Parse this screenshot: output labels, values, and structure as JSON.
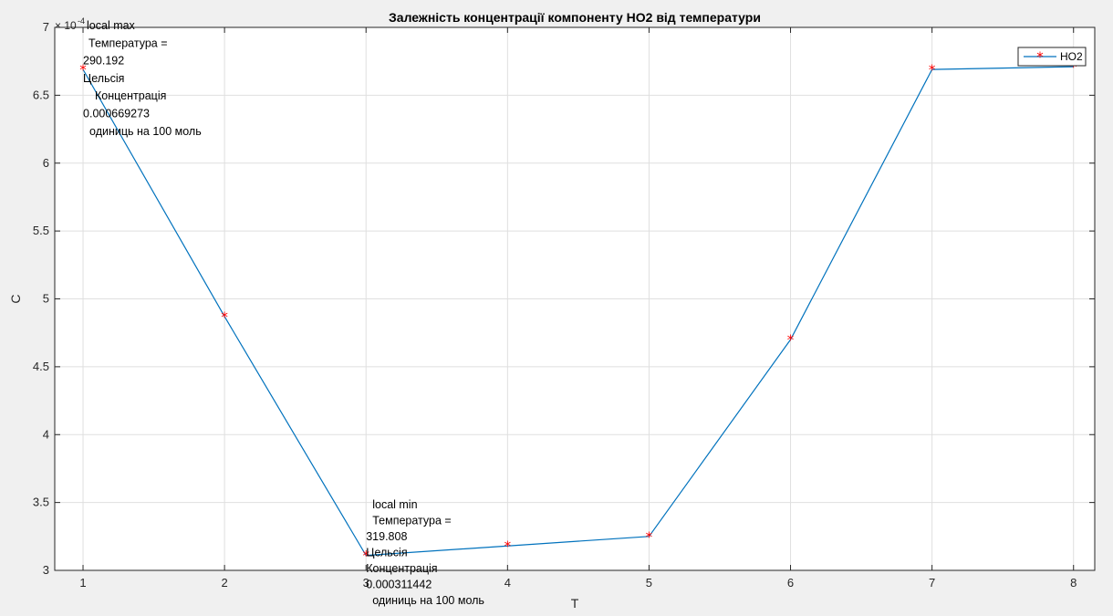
{
  "chart_data": {
    "type": "line",
    "title": "Залежність концентрації компоненту НО2 від температури",
    "xlabel": "T",
    "ylabel": "C",
    "y_exponent_base": "× 10",
    "y_exponent_power": "-4",
    "x": [
      1,
      2,
      3,
      4,
      5,
      6,
      7,
      8
    ],
    "xlim": [
      0.8,
      8.15
    ],
    "ylim": [
      3,
      7
    ],
    "x_ticks": [
      1,
      2,
      3,
      4,
      5,
      6,
      7,
      8
    ],
    "y_ticks": [
      3,
      3.5,
      4,
      4.5,
      5,
      5.5,
      6,
      6.5,
      7
    ],
    "grid": true,
    "legend_position": "top-right",
    "series": [
      {
        "name": "HO2",
        "values": [
          6.69,
          4.87,
          3.11,
          3.18,
          3.25,
          4.7,
          6.69,
          6.71
        ],
        "line_color": "#0072bd",
        "marker_color": "#ff0000",
        "marker": "*"
      }
    ],
    "annotations": {
      "max": {
        "x": 1,
        "lines": [
          "local max",
          "Температура =",
          "290.192",
          "Цельсія",
          "Концентрація",
          "0.000669273",
          "одиниць на 100 моль"
        ]
      },
      "min": {
        "x": 3,
        "lines": [
          "local min",
          "Температура =",
          "319.808",
          "Цельсія",
          "Концентрація",
          "0.000311442",
          "одиниць на 100 моль"
        ]
      }
    }
  }
}
